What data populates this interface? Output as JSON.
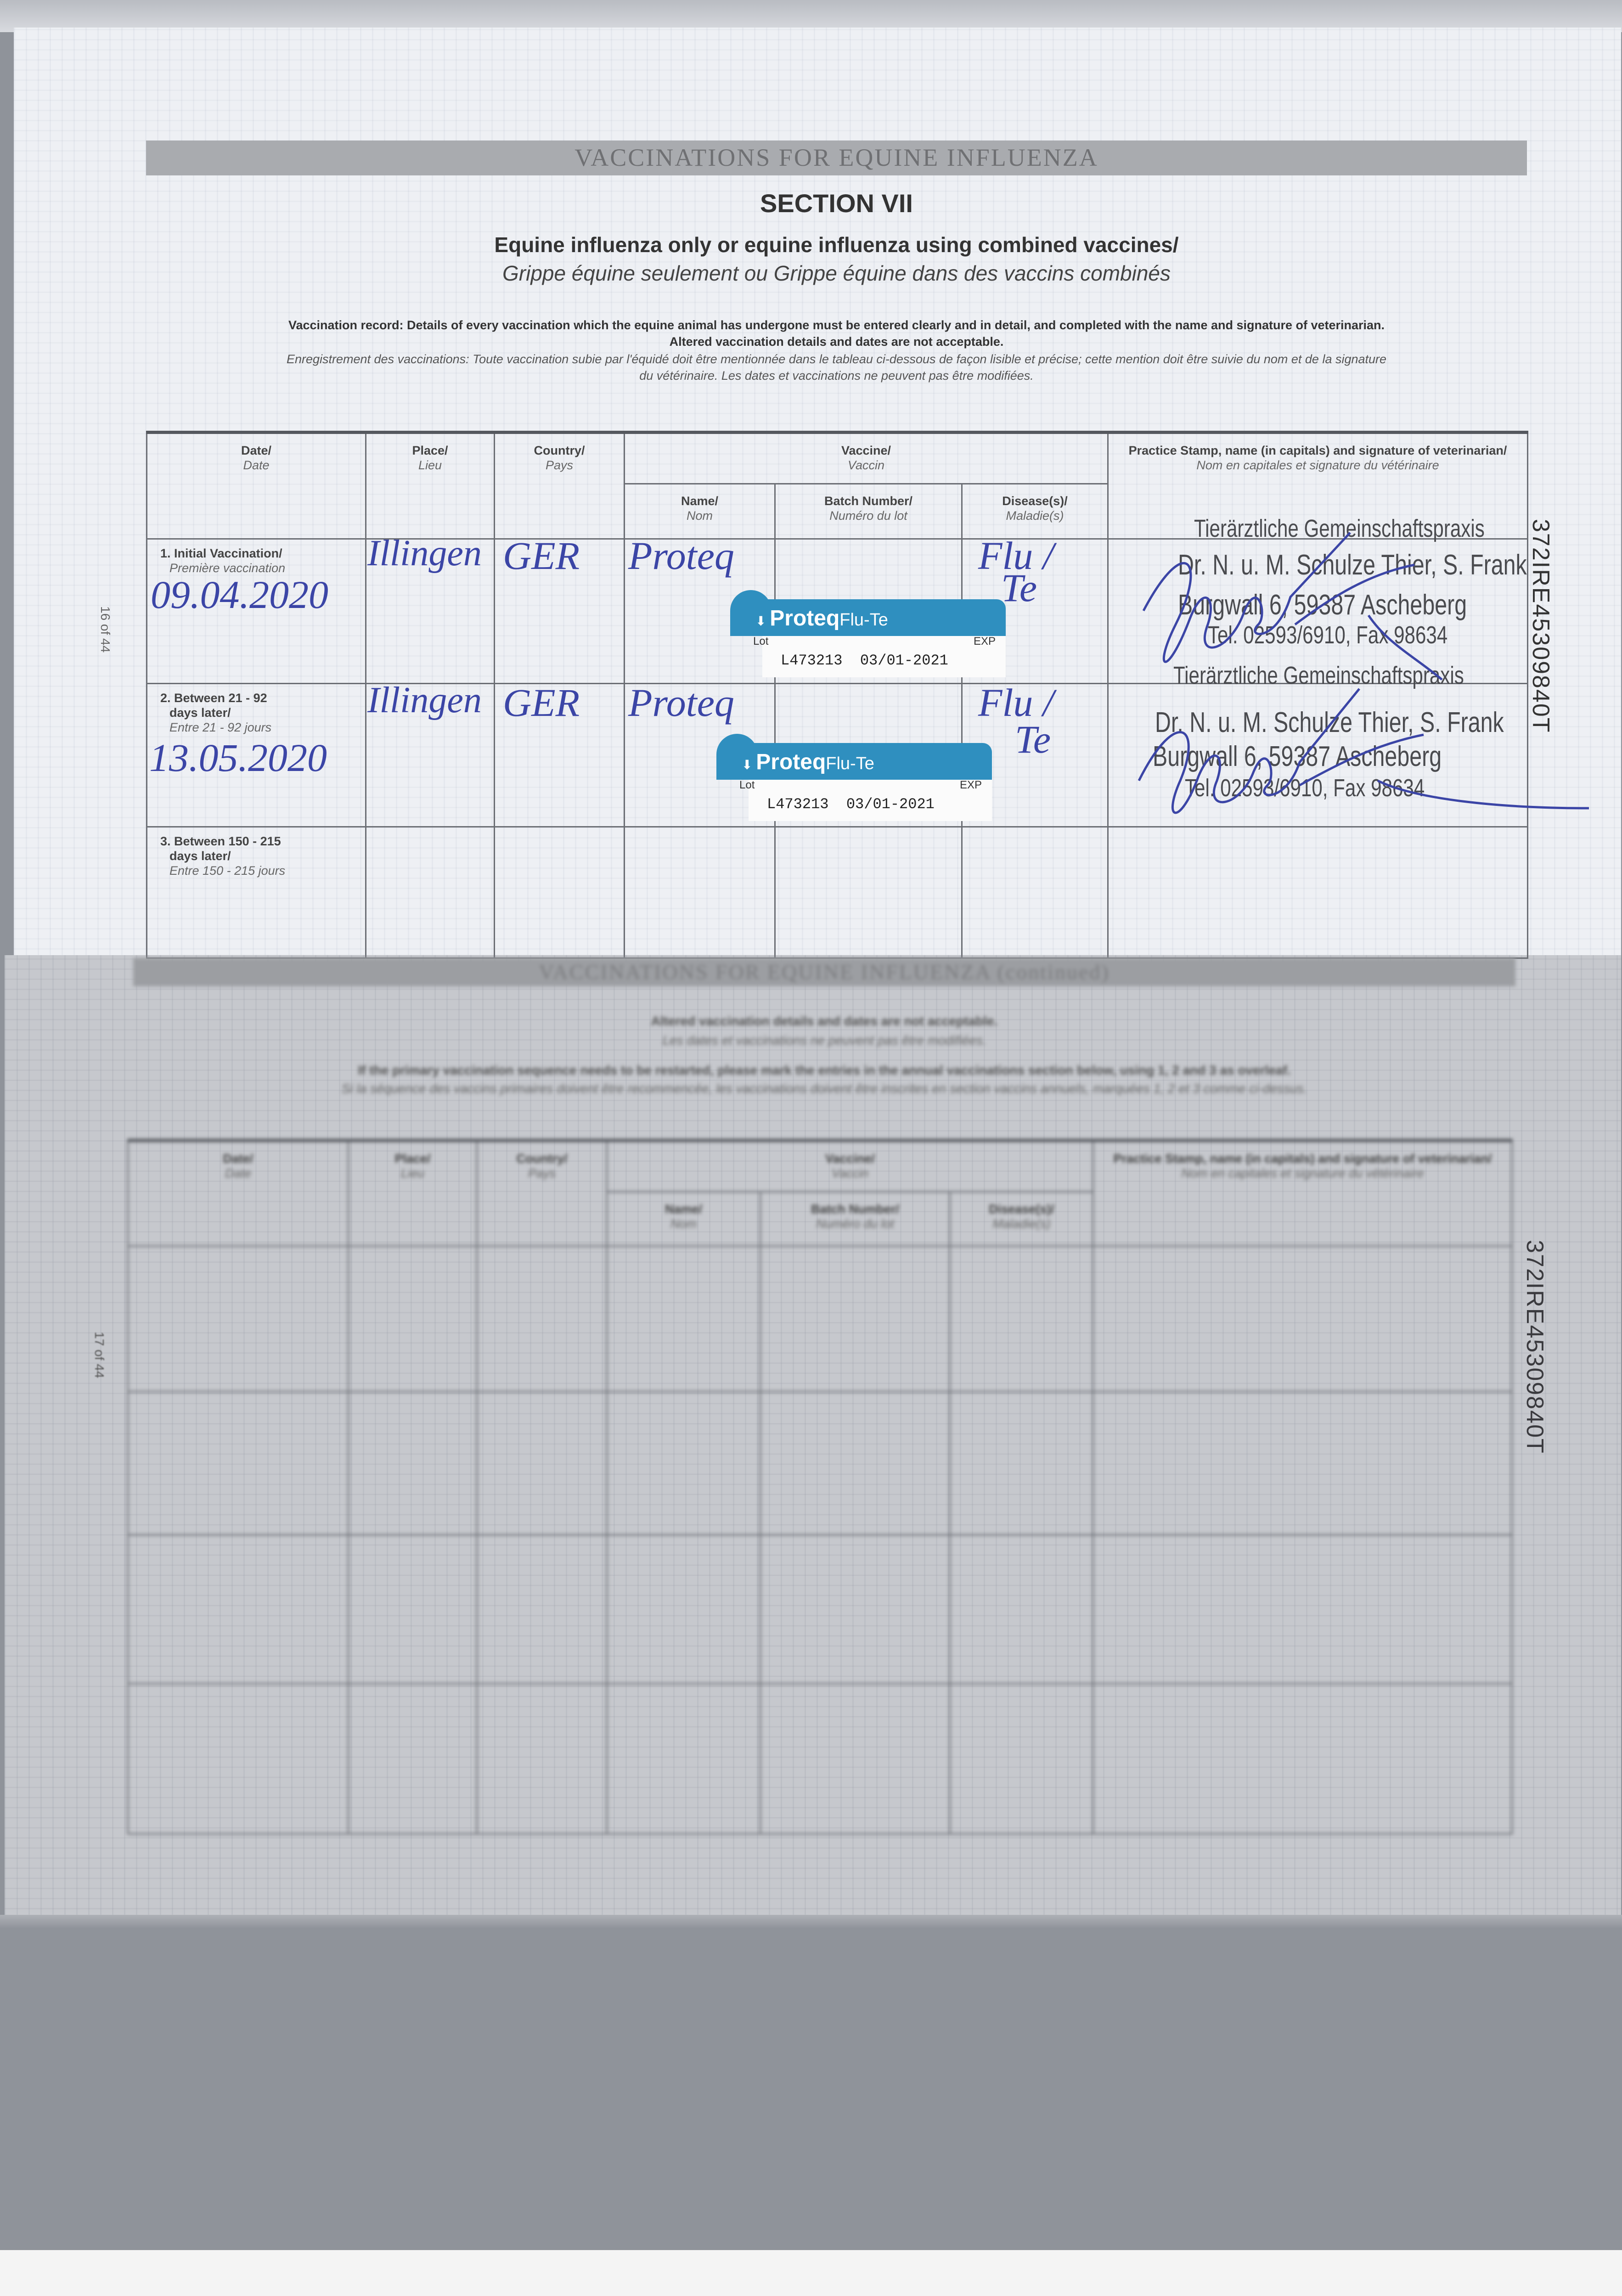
{
  "upper_page": {
    "band_title": "VACCINATIONS FOR EQUINE INFLUENZA",
    "section": "SECTION VII",
    "subtitle_en": "Equine influenza only or equine influenza using combined vaccines/",
    "subtitle_fr": "Grippe équine seulement ou Grippe équine dans des vaccins combinés",
    "instructions_en": "Vaccination record: Details of every vaccination which the equine animal has undergone must be entered clearly and in detail, and completed with the name and signature of veterinarian.",
    "instructions_en_2": "Altered vaccination details and dates are not acceptable.",
    "instructions_fr": "Enregistrement des vaccinations: Toute vaccination subie par l'équidé doit être mentionnée dans le tableau ci-dessous de façon lisible et précise; cette mention doit être suivie du nom et de la signature",
    "instructions_fr_2": "du vétérinaire. Les dates et vaccinations ne peuvent pas être modifiées.",
    "page_number": "16 of 44",
    "passport_id": "372IRE45309840T",
    "table": {
      "headers": {
        "date": {
          "en": "Date/",
          "fr": "Date"
        },
        "place": {
          "en": "Place/",
          "fr": "Lieu"
        },
        "country": {
          "en": "Country/",
          "fr": "Pays"
        },
        "vaccine": {
          "en": "Vaccine/",
          "fr": "Vaccin"
        },
        "name": {
          "en": "Name/",
          "fr": "Nom"
        },
        "batch": {
          "en": "Batch Number/",
          "fr": "Numéro du lot"
        },
        "disease": {
          "en": "Disease(s)/",
          "fr": "Maladie(s)"
        },
        "stamp": {
          "en": "Practice Stamp, name (in capitals) and signature of veterinarian/",
          "fr": "Nom en capitales et signature du vétérinaire"
        }
      },
      "rows": [
        {
          "label_en": "1. Initial Vaccination/",
          "label_en_2": "",
          "label_fr": "Première vaccination",
          "date": "09.04.2020",
          "place": "Illingen",
          "country": "GER",
          "name": "Proteq",
          "disease_1": "Flu /",
          "disease_2": "Te",
          "sticker": {
            "brand": "Proteq",
            "product": "Flu-Te",
            "lot_label": "Lot",
            "exp_label": "EXP",
            "lot": "L473213",
            "exp": "03/01-2021"
          },
          "stamp": [
            "Tierärztliche Gemeinschaftspraxis",
            "Dr. N. u. M. Schulze Thier, S. Frank",
            "Burgwall 6, 59387 Ascheberg",
            "Tel. 02593/6910, Fax 98634"
          ]
        },
        {
          "label_en": "2. Between 21 - 92",
          "label_en_2": "days later/",
          "label_fr": "Entre 21 - 92 jours",
          "date": "13.05.2020",
          "place": "Illingen",
          "country": "GER",
          "name": "Proteq",
          "disease_1": "Flu /",
          "disease_2": "Te",
          "sticker": {
            "brand": "Proteq",
            "product": "Flu-Te",
            "lot_label": "Lot",
            "exp_label": "EXP",
            "lot": "L473213",
            "exp": "03/01-2021"
          },
          "stamp": [
            "Tierärztliche Gemeinschaftspraxis",
            "Dr. N. u. M. Schulze Thier, S. Frank",
            "Burgwall 6, 59387 Ascheberg",
            "Tel. 02593/6910, Fax 98634"
          ]
        },
        {
          "label_en": "3. Between 150 - 215",
          "label_en_2": "days later/",
          "label_fr": "Entre 150 - 215 jours"
        }
      ]
    }
  },
  "lower_page": {
    "band_title": "VACCINATIONS FOR EQUINE INFLUENZA (continued)",
    "notice_en": "Altered vaccination details and dates are not acceptable.",
    "notice_fr": "Les dates et vaccinations ne peuvent pas être modifiées.",
    "restart_en": "If the primary vaccination sequence needs to be restarted, please mark the entries in the annual vaccinations section below, using 1, 2 and 3 as overleaf.",
    "restart_fr": "Si la séquence des vaccins primaires doivent être recommencée, les vaccinations doivent être inscrites en section vaccins annuels, marquées 1, 2 et 3 comme ci-dessus.",
    "page_number": "17 of 44",
    "passport_id": "372IRE45309840T"
  },
  "colors": {
    "ink": "#3b45a6",
    "sticker": "#2f8fbf",
    "band": "#a9abaf"
  }
}
